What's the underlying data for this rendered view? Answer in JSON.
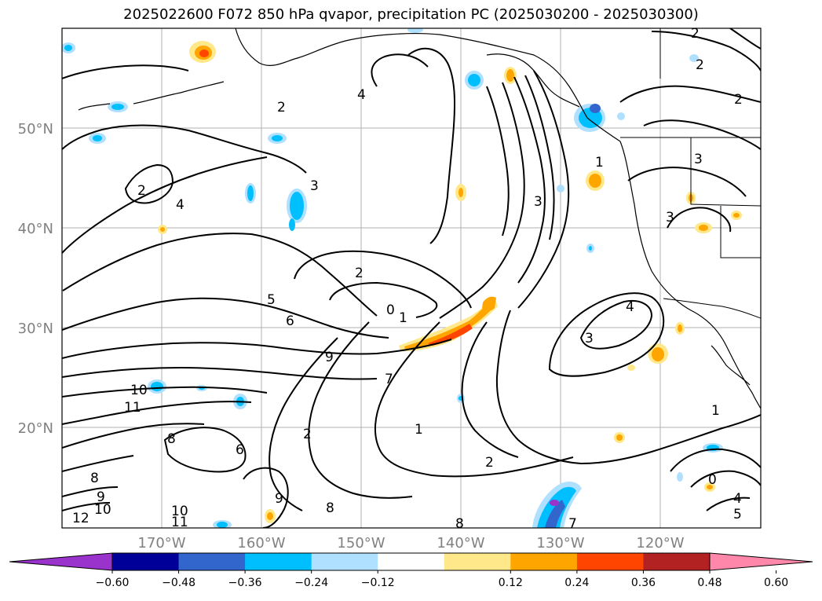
{
  "title": "2025022600 F072 850 hPa qvapor, precipitation PC (2025030200 - 2025030300)",
  "latitude_labels": [
    "50°N",
    "40°N",
    "30°N",
    "20°N"
  ],
  "longitude_labels": [
    "170°W",
    "160°W",
    "150°W",
    "140°W",
    "130°W",
    "120°W"
  ],
  "contour_labels": [
    "2",
    "4",
    "2",
    "3",
    "2",
    "4",
    "2",
    "0",
    "1",
    "5",
    "6",
    "9",
    "7",
    "10",
    "11",
    "8",
    "6",
    "9",
    "8",
    "10",
    "11",
    "12",
    "10",
    "9",
    "8",
    "1",
    "2",
    "3",
    "3",
    "3",
    "4",
    "3",
    "1",
    "2",
    "2",
    "4",
    "0",
    "5",
    "1",
    "2",
    "8",
    "7"
  ],
  "colorbar": {
    "ticks": [
      "−0.60",
      "−0.48",
      "−0.36",
      "−0.24",
      "−0.12",
      "0.12",
      "0.24",
      "0.36",
      "0.48",
      "0.60"
    ],
    "colors": [
      "#9933cc",
      "#000099",
      "#3366cc",
      "#00bfff",
      "#b0e0ff",
      "#ffffff",
      "#ffe88a",
      "#ffa500",
      "#ff4500",
      "#b22222",
      "#ff88aa"
    ]
  },
  "map_data": {
    "projection": "equirectangular",
    "lon_range": [
      -180,
      -110
    ],
    "lat_range": [
      10,
      59
    ],
    "gridlines": true,
    "variable": "850 hPa qvapor",
    "shading": "precipitation PC"
  }
}
